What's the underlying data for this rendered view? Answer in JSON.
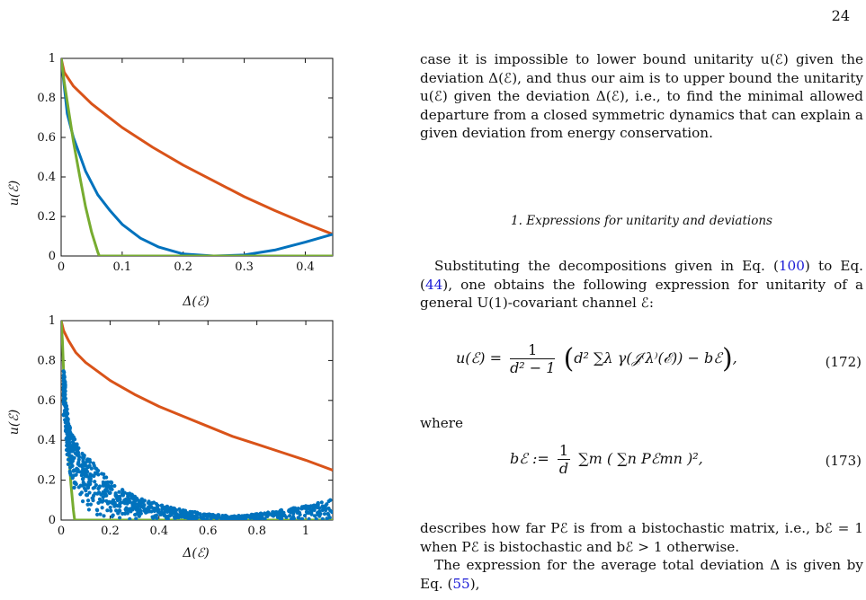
{
  "page": {
    "number": "24"
  },
  "figures": {
    "top": {
      "ylabel": "u(ℰ)",
      "xlabel": "Δ(ℰ)",
      "yticks": [
        "0",
        "0.2",
        "0.4",
        "0.6",
        "0.8",
        "1"
      ],
      "xticks": [
        "0",
        "0.1",
        "0.2",
        "0.3",
        "0.4"
      ]
    },
    "bottom": {
      "ylabel": "u(ℰ)",
      "xlabel": "Δ(ℰ)",
      "yticks": [
        "0",
        "0.2",
        "0.4",
        "0.6",
        "0.8",
        "1"
      ],
      "xticks": [
        "0",
        "0.2",
        "0.4",
        "0.6",
        "0.8",
        "1"
      ]
    }
  },
  "chart_data": [
    {
      "type": "line",
      "xlim": [
        0,
        0.445
      ],
      "ylim": [
        0,
        1
      ],
      "grid": false,
      "series": [
        {
          "color": "#d95319",
          "x": [
            0,
            0.005,
            0.02,
            0.05,
            0.1,
            0.15,
            0.2,
            0.25,
            0.3,
            0.35,
            0.4,
            0.445
          ],
          "y": [
            1,
            0.93,
            0.86,
            0.77,
            0.65,
            0.55,
            0.46,
            0.38,
            0.3,
            0.23,
            0.165,
            0.11
          ]
        },
        {
          "color": "#0072bd",
          "x": [
            0,
            0.01,
            0.02,
            0.04,
            0.06,
            0.08,
            0.1,
            0.13,
            0.16,
            0.2,
            0.25,
            0.3,
            0.35,
            0.4,
            0.445
          ],
          "y": [
            1,
            0.72,
            0.6,
            0.43,
            0.31,
            0.23,
            0.16,
            0.09,
            0.045,
            0.01,
            0.0,
            0.005,
            0.03,
            0.07,
            0.11
          ]
        },
        {
          "color": "#77ac30",
          "x": [
            0,
            0.005,
            0.01,
            0.02,
            0.03,
            0.04,
            0.05,
            0.06,
            0.0625,
            0.1,
            0.2,
            0.3,
            0.445
          ],
          "y": [
            1,
            0.88,
            0.78,
            0.58,
            0.41,
            0.25,
            0.12,
            0.02,
            0,
            0,
            0,
            0,
            0
          ]
        }
      ]
    },
    {
      "type": "scatter",
      "xlim": [
        0,
        1.11
      ],
      "ylim": [
        0,
        1
      ],
      "grid": false,
      "series": [
        {
          "color": "#d95319",
          "x": [
            0,
            0.01,
            0.03,
            0.06,
            0.1,
            0.2,
            0.3,
            0.4,
            0.5,
            0.6,
            0.7,
            0.8,
            0.9,
            1.0,
            1.11
          ],
          "y": [
            1,
            0.95,
            0.9,
            0.84,
            0.79,
            0.7,
            0.63,
            0.57,
            0.52,
            0.47,
            0.42,
            0.38,
            0.34,
            0.3,
            0.25
          ]
        },
        {
          "color": "#77ac30",
          "x": [
            0,
            0.005,
            0.01,
            0.02,
            0.03,
            0.04,
            0.05,
            0.055,
            0.1,
            0.5,
            1.11
          ],
          "y": [
            1,
            0.9,
            0.75,
            0.55,
            0.35,
            0.18,
            0.05,
            0,
            0,
            0,
            0
          ]
        },
        {
          "color": "#0072bd",
          "x": [
            0.015,
            0.02,
            0.03,
            0.05,
            0.08,
            0.12,
            0.2,
            0.3,
            0.4,
            0.5,
            0.6,
            0.7,
            0.8,
            0.9,
            0.95,
            1.0,
            1.05,
            1.1
          ],
          "y": [
            0.75,
            0.6,
            0.5,
            0.42,
            0.35,
            0.3,
            0.2,
            0.12,
            0.08,
            0.05,
            0.03,
            0.02,
            0.03,
            0.05,
            0.06,
            0.07,
            0.085,
            0.1
          ]
        }
      ]
    }
  ],
  "text": {
    "para1": "case it is impossible to lower bound unitarity u(ℰ) given the deviation Δ(ℰ), and thus our aim is to upper bound the unitarity u(ℰ) given the deviation Δ(ℰ), i.e., to find the minimal allowed departure from a closed symmetric dynamics that can explain a given deviation from energy conservation.",
    "subsection": "1.   Expressions for unitarity and deviations",
    "para2_a": "Substituting the decompositions given in Eq. (",
    "ref1": "100",
    "para2_b": ") to Eq. (",
    "ref2": "44",
    "para2_c": "), one obtains the following expression for unitarity of a general U(1)-covariant channel ℰ:",
    "eq172_lhs": "u(ℰ) =",
    "eq172_frac_num": "1",
    "eq172_frac_den": "d² − 1",
    "eq172_rhs": "d² ∑λ γ(𝒥⁽λ⁾(ℰ)) − bℰ",
    "eq172_num": "(172)",
    "where": "where",
    "eq173_lhs": "bℰ :=",
    "eq173_frac_num": "1",
    "eq173_frac_den": "d",
    "eq173_rhs": "∑m ( ∑n Pℰmn )²,",
    "eq173_num": "(173)",
    "para3": "describes how far Pℰ is from a bistochastic matrix, i.e., bℰ = 1 when Pℰ is bistochastic and bℰ > 1 otherwise.",
    "para4": "The expression for the average total deviation Δ is given by Eq. (",
    "ref3": "55",
    "para4_end": "),"
  }
}
